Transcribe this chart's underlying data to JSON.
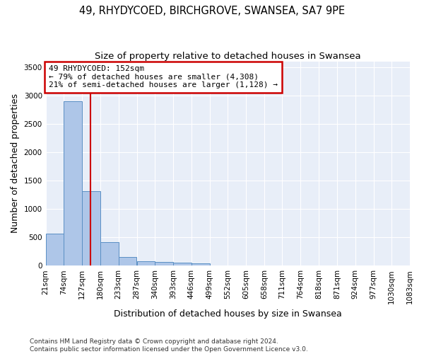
{
  "title": "49, RHYDYCOED, BIRCHGROVE, SWANSEA, SA7 9PE",
  "subtitle": "Size of property relative to detached houses in Swansea",
  "xlabel": "Distribution of detached houses by size in Swansea",
  "ylabel": "Number of detached properties",
  "bin_labels": [
    "21sqm",
    "74sqm",
    "127sqm",
    "180sqm",
    "233sqm",
    "287sqm",
    "340sqm",
    "393sqm",
    "446sqm",
    "499sqm",
    "552sqm",
    "605sqm",
    "658sqm",
    "711sqm",
    "764sqm",
    "818sqm",
    "871sqm",
    "924sqm",
    "977sqm",
    "1030sqm",
    "1083sqm"
  ],
  "bin_edges": [
    21,
    74,
    127,
    180,
    233,
    287,
    340,
    393,
    446,
    499,
    552,
    605,
    658,
    711,
    764,
    818,
    871,
    924,
    977,
    1030,
    1083
  ],
  "bar_heights": [
    560,
    2900,
    1310,
    410,
    155,
    80,
    60,
    50,
    40,
    0,
    0,
    0,
    0,
    0,
    0,
    0,
    0,
    0,
    0,
    0
  ],
  "bar_color": "#aec6e8",
  "bar_edge_color": "#5a8fc4",
  "property_size": 152,
  "property_line_color": "#cc0000",
  "annotation_line1": "49 RHYDYCOED: 152sqm",
  "annotation_line2": "← 79% of detached houses are smaller (4,308)",
  "annotation_line3": "21% of semi-detached houses are larger (1,128) →",
  "annotation_box_color": "#ffffff",
  "annotation_box_edge_color": "#cc0000",
  "ylim": [
    0,
    3600
  ],
  "yticks": [
    0,
    500,
    1000,
    1500,
    2000,
    2500,
    3000,
    3500
  ],
  "background_color": "#e8eef8",
  "grid_color": "#ffffff",
  "footnote_line1": "Contains HM Land Registry data © Crown copyright and database right 2024.",
  "footnote_line2": "Contains public sector information licensed under the Open Government Licence v3.0.",
  "title_fontsize": 10.5,
  "subtitle_fontsize": 9.5,
  "axis_label_fontsize": 9,
  "tick_fontsize": 7.5,
  "annotation_fontsize": 8,
  "footnote_fontsize": 6.5
}
